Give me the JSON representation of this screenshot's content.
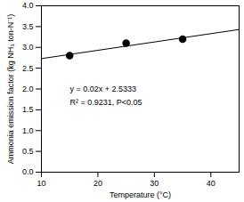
{
  "chart_data": {
    "type": "scatter",
    "x_label": "Temperature (°C)",
    "y_label": "Ammonia emission factor (kg NH₃ ton-N⁻¹)",
    "x": [
      15,
      25,
      35
    ],
    "values": [
      2.8,
      3.1,
      3.2
    ],
    "color": "#000000",
    "marker": "circle",
    "trendline": {
      "x": [
        10,
        45
      ],
      "values": [
        2.73,
        3.43
      ]
    },
    "annotations": [
      "y = 0.02x + 2.5333",
      "R² = 0.9231, P<0.05"
    ],
    "xlim": [
      10,
      45
    ],
    "xticks": [
      10,
      20,
      30,
      40
    ],
    "ylim": [
      0,
      4
    ],
    "yticks": [
      {
        "value": 0,
        "label": "0.0"
      },
      {
        "value": 0.5,
        "label": "0.5"
      },
      {
        "value": 1,
        "label": "1.0"
      },
      {
        "value": 1.5,
        "label": "1.5"
      },
      {
        "value": 2,
        "label": "2.0"
      },
      {
        "value": 2.5,
        "label": "2.5"
      },
      {
        "value": 3,
        "label": "3.0"
      },
      {
        "value": 3.5,
        "label": "3.5"
      },
      {
        "value": 4,
        "label": "4.0"
      }
    ]
  }
}
